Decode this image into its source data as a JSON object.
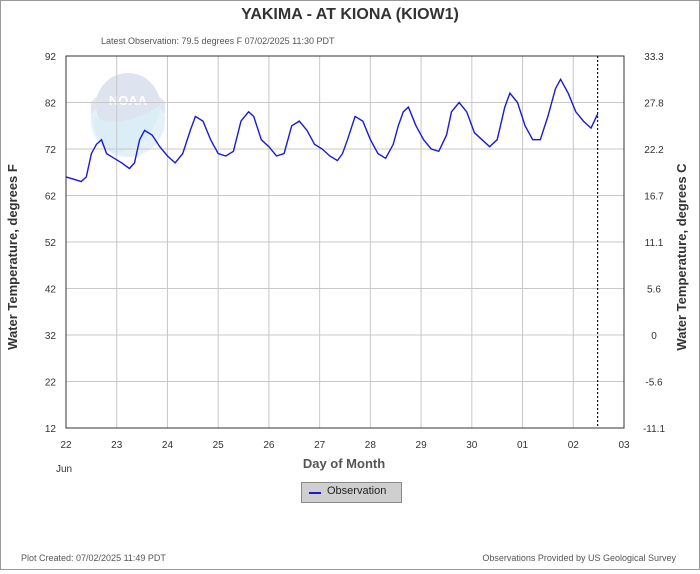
{
  "header": {
    "title": "YAKIMA - AT KIONA  (KIOW1)",
    "latest": "Latest Observation: 79.5 degrees F 07/02/2025 11:30 PDT"
  },
  "footer": {
    "created": "Plot Created: 07/02/2025 11:49 PDT",
    "provider": "Observations Provided by US Geological Survey"
  },
  "logo_text": "NOAA",
  "legend": {
    "label": "Observation"
  },
  "colors": {
    "series": "#1a1ad6",
    "grid": "#c8c8c8"
  },
  "chart_data": {
    "type": "line",
    "xlabel": "Day of Month",
    "ylabel": "Water Temperature, degrees F",
    "ylabel_right": "Water Temperature, degrees C",
    "x_ticks": [
      "22",
      "23",
      "24",
      "25",
      "26",
      "27",
      "28",
      "29",
      "30",
      "01",
      "02",
      "03"
    ],
    "x_month_label": "Jun",
    "xlim": [
      22,
      33
    ],
    "ylim": [
      12,
      92
    ],
    "y_ticks": [
      12,
      22,
      32,
      42,
      52,
      62,
      72,
      82,
      92
    ],
    "y_ticks_right": [
      "-11.1",
      "-5.6",
      "0",
      "5.6",
      "11.1",
      "16.7",
      "22.2",
      "27.8",
      "33.3"
    ],
    "latest_observation_day": 32.48,
    "grid": true,
    "series": [
      {
        "x": [
          22.0,
          22.15,
          22.3,
          22.4,
          22.5,
          22.6,
          22.7,
          22.8,
          22.95,
          23.1,
          23.25,
          23.35,
          23.45,
          23.55,
          23.7,
          23.85,
          24.0,
          24.15,
          24.3,
          24.45,
          24.55,
          24.7,
          24.85,
          25.0,
          25.15,
          25.3,
          25.45,
          25.6,
          25.7,
          25.85,
          26.0,
          26.15,
          26.3,
          26.45,
          26.6,
          26.75,
          26.9,
          27.05,
          27.2,
          27.35,
          27.45,
          27.55,
          27.7,
          27.85,
          28.0,
          28.15,
          28.3,
          28.45,
          28.55,
          28.65,
          28.75,
          28.9,
          29.05,
          29.2,
          29.35,
          29.5,
          29.6,
          29.75,
          29.9,
          30.05,
          30.2,
          30.35,
          30.5,
          30.65,
          30.75,
          30.9,
          31.05,
          31.2,
          31.35,
          31.5,
          31.65,
          31.75,
          31.9,
          32.05,
          32.2,
          32.35,
          32.48
        ],
        "y": [
          66,
          65.5,
          65,
          66,
          71,
          73,
          74,
          71,
          70,
          69,
          67.8,
          69,
          74,
          76,
          75,
          72.5,
          70.5,
          69,
          71,
          76,
          79,
          78,
          74,
          71,
          70.5,
          71.5,
          78,
          80,
          79,
          74,
          72.5,
          70.5,
          71,
          77,
          78,
          76,
          73,
          72,
          70.5,
          69.5,
          71,
          74,
          79,
          78,
          74,
          71,
          70,
          73,
          77,
          80,
          81,
          77,
          74,
          72,
          71.5,
          75,
          80,
          82,
          80,
          75.5,
          74,
          72.5,
          74,
          81,
          84,
          82,
          77,
          74,
          74,
          79,
          85,
          87,
          84,
          80,
          78,
          76.5,
          79.5
        ]
      }
    ]
  }
}
